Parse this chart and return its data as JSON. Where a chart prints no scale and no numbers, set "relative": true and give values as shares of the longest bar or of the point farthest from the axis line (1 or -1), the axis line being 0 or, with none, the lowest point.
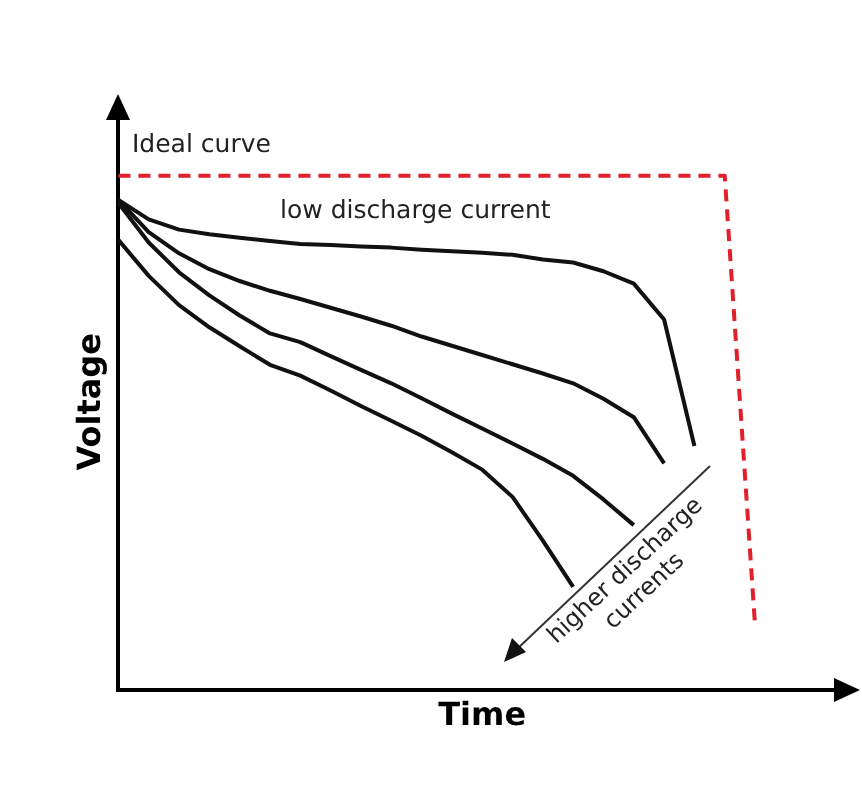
{
  "chart_data": {
    "type": "line",
    "relative": true,
    "xlabel": "Time",
    "ylabel": "Voltage",
    "tick_labels": false,
    "grid": false,
    "legend": false,
    "marker": "none",
    "categories": [
      null,
      null,
      null,
      null,
      null,
      null,
      null,
      null,
      null,
      null,
      null,
      null,
      null,
      null,
      null,
      null,
      null,
      null,
      null,
      null,
      null,
      null,
      null,
      null,
      null
    ],
    "series": [
      {
        "color": "#e0202a",
        "line_style": "dashed",
        "values": [
          1,
          1,
          1,
          1,
          1,
          1,
          1,
          1,
          1,
          1,
          1,
          1,
          1,
          1,
          1,
          1,
          1,
          1,
          1,
          1,
          1,
          0.125,
          null,
          null,
          null
        ]
      },
      {
        "color": "#111111",
        "line_style": "solid",
        "values": [
          0.953,
          0.915,
          0.895,
          0.886,
          0.879,
          0.873,
          0.867,
          0.865,
          0.862,
          0.86,
          0.856,
          0.853,
          0.85,
          0.846,
          0.837,
          0.831,
          0.814,
          0.79,
          0.72,
          0.474,
          null,
          null,
          null,
          null,
          null
        ]
      },
      {
        "color": "#111111",
        "line_style": "solid",
        "values": [
          0.953,
          0.89,
          0.849,
          0.818,
          0.795,
          0.776,
          0.76,
          0.743,
          0.726,
          0.708,
          0.687,
          0.669,
          0.651,
          0.633,
          0.615,
          0.596,
          0.566,
          0.53,
          0.44,
          null,
          null,
          null,
          null,
          null,
          null
        ]
      },
      {
        "color": "#111111",
        "line_style": "solid",
        "values": [
          0.947,
          0.87,
          0.812,
          0.767,
          0.728,
          0.693,
          0.676,
          0.649,
          0.622,
          0.596,
          0.567,
          0.537,
          0.508,
          0.479,
          0.449,
          0.416,
          0.37,
          0.32,
          null,
          null,
          null,
          null,
          null,
          null,
          null
        ]
      },
      {
        "color": "#111111",
        "line_style": "solid",
        "values": [
          0.875,
          0.805,
          0.748,
          0.705,
          0.668,
          0.632,
          0.611,
          0.582,
          0.552,
          0.523,
          0.494,
          0.462,
          0.428,
          0.375,
          0.29,
          0.2,
          null,
          null,
          null,
          null,
          null,
          null,
          null,
          null,
          null
        ]
      }
    ],
    "annotations": [
      "Ideal curve",
      "low discharge current",
      "higher discharge currents"
    ]
  }
}
